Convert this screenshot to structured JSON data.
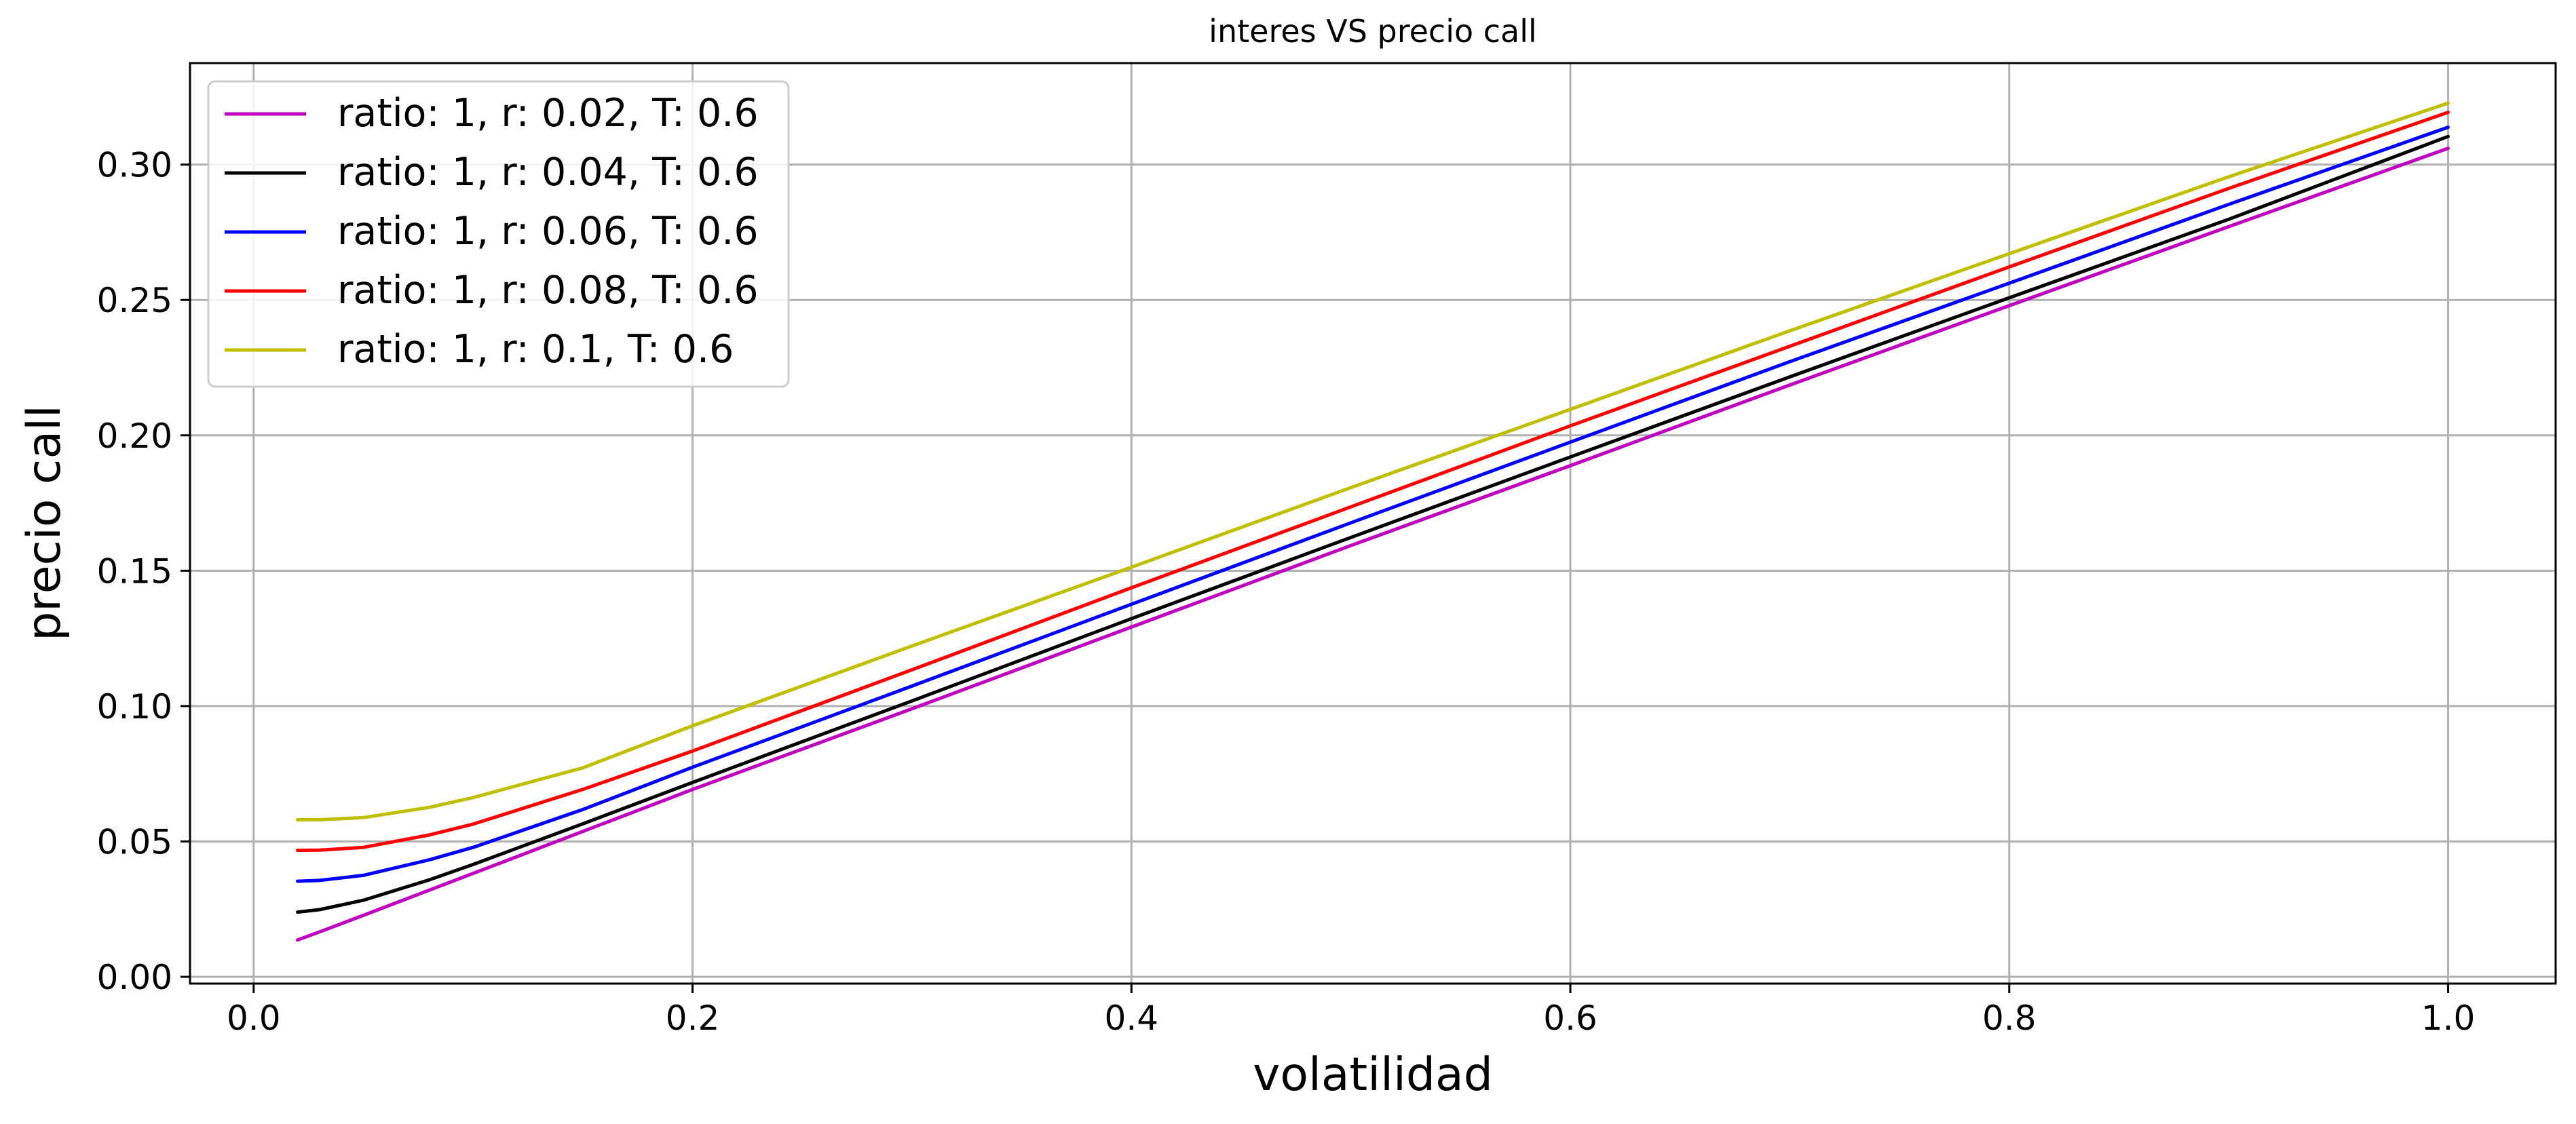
{
  "chart_data": {
    "type": "line",
    "title": "interes VS precio call",
    "xlabel": "volatilidad",
    "ylabel": "precio call",
    "xlim": [
      -0.029,
      1.049
    ],
    "ylim": [
      -0.0025,
      0.3375
    ],
    "xticks": [
      0.0,
      0.2,
      0.4,
      0.6,
      0.8,
      1.0
    ],
    "xtick_labels": [
      "0.0",
      "0.2",
      "0.4",
      "0.6",
      "0.8",
      "1.0"
    ],
    "yticks": [
      0.0,
      0.05,
      0.1,
      0.15,
      0.2,
      0.25,
      0.3
    ],
    "ytick_labels": [
      "0.00",
      "0.05",
      "0.10",
      "0.15",
      "0.20",
      "0.25",
      "0.30"
    ],
    "grid": true,
    "legend_position": "top-left",
    "x": [
      0.02,
      0.03,
      0.05,
      0.08,
      0.1,
      0.15,
      0.2,
      0.3,
      0.4,
      0.5,
      0.6,
      0.7,
      0.8,
      0.9,
      1.0
    ],
    "series": [
      {
        "name": "ratio: 1, r: 0.02, T: 0.6",
        "color": "#bf00bf",
        "values": [
          0.0136,
          0.0166,
          0.0227,
          0.032,
          0.0382,
          0.0537,
          0.0692,
          0.099,
          0.1292,
          0.1593,
          0.1888,
          0.2186,
          0.2479,
          0.2771,
          0.306
        ]
      },
      {
        "name": "ratio: 1, r: 0.04, T: 0.6",
        "color": "#000000",
        "values": [
          0.0239,
          0.0248,
          0.0283,
          0.0358,
          0.0415,
          0.0565,
          0.0718,
          0.1019,
          0.1323,
          0.1623,
          0.192,
          0.2216,
          0.2508,
          0.2798,
          0.3104
        ]
      },
      {
        "name": "ratio: 1, r: 0.06, T: 0.6",
        "color": "#0000ff",
        "values": [
          0.0353,
          0.0356,
          0.0375,
          0.0432,
          0.0478,
          0.0618,
          0.0774,
          0.1074,
          0.1376,
          0.1677,
          0.1975,
          0.2272,
          0.2562,
          0.2853,
          0.3138
        ]
      },
      {
        "name": "ratio: 1, r: 0.08, T: 0.6",
        "color": "#ff0000",
        "values": [
          0.0467,
          0.0468,
          0.0478,
          0.0524,
          0.0564,
          0.0692,
          0.0834,
          0.1134,
          0.1437,
          0.1736,
          0.2035,
          0.2329,
          0.2622,
          0.2912,
          0.3193
        ]
      },
      {
        "name": "ratio: 1, r: 0.1, T: 0.6",
        "color": "#bfbf00",
        "values": [
          0.058,
          0.058,
          0.0588,
          0.0626,
          0.0662,
          0.0772,
          0.0927,
          0.1222,
          0.1513,
          0.1807,
          0.2096,
          0.2386,
          0.2671,
          0.2955,
          0.3227
        ]
      }
    ]
  }
}
